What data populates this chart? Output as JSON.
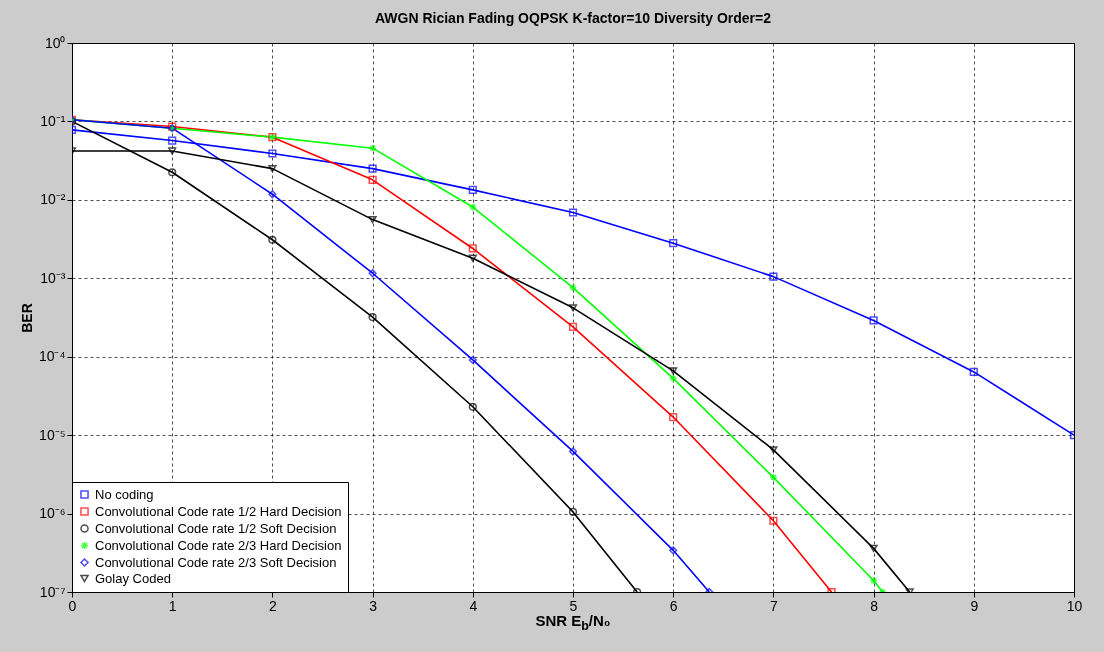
{
  "chart_data": {
    "type": "line",
    "title": "AWGN Rician Fading OQPSK K-factor=10 Diversity Order=2",
    "xlabel": "SNR E$_{b}$/N₀",
    "ylabel": "BER",
    "log": true,
    "grid": true,
    "legend": "bottom left",
    "xlim": [
      0,
      10
    ],
    "xticks": [
      0,
      1,
      2,
      3,
      4,
      5,
      6,
      7,
      8,
      9,
      10
    ],
    "ylim": [
      1e-07,
      1
    ],
    "yticks": [
      {
        "value": 1e-07,
        "label": "10⁻⁷"
      },
      {
        "value": 1e-06,
        "label": "10⁻⁶"
      },
      {
        "value": 1e-05,
        "label": "10⁻⁵"
      },
      {
        "value": 0.0001,
        "label": "10⁻⁴"
      },
      {
        "value": 0.001,
        "label": "10⁻³"
      },
      {
        "value": 0.01,
        "label": "10⁻²"
      },
      {
        "value": 0.1,
        "label": "10⁻¹"
      },
      {
        "value": 1,
        "label": "10⁰"
      }
    ],
    "series": [
      {
        "name": "No coding",
        "color": "#0000ff",
        "marker": "square",
        "x": [
          0,
          1,
          2,
          3,
          4,
          5,
          6,
          7,
          8,
          9,
          10
        ],
        "values": [
          0.078,
          0.057,
          0.039,
          0.025,
          0.0134,
          0.0069,
          0.0028,
          0.00105,
          0.00029,
          6.4e-05,
          1e-05
        ]
      },
      {
        "name": "Convolutional Code rate 1/2 Hard Decision",
        "color": "#ff0000",
        "marker": "square",
        "x": [
          0,
          1,
          2,
          3,
          4,
          5,
          6,
          7,
          7.58
        ],
        "values": [
          0.105,
          0.086,
          0.063,
          0.018,
          0.0024,
          0.00024,
          1.7e-05,
          8.1e-07,
          1e-07
        ]
      },
      {
        "name": "Convolutional Code rate 1/2 Soft Decision",
        "color": "#000000",
        "marker": "circle",
        "x": [
          0,
          1,
          2,
          3,
          4,
          5,
          5.64
        ],
        "values": [
          0.1,
          0.0225,
          0.0031,
          0.00032,
          2.3e-05,
          1.05e-06,
          1e-07
        ]
      },
      {
        "name": "Convolutional Code rate 2/3 Hard Decision",
        "color": "#00ff00",
        "marker": "cross",
        "x": [
          0,
          1,
          2,
          3,
          4,
          5,
          6,
          7,
          8,
          8.09
        ],
        "values": [
          0.105,
          0.082,
          0.063,
          0.0456,
          0.0081,
          0.00076,
          5.3e-05,
          2.9e-06,
          1.4e-07,
          1e-07
        ]
      },
      {
        "name": "Convolutional Code rate 2/3 Soft Decision",
        "color": "#0000ff",
        "marker": "diamond",
        "x": [
          0,
          1,
          2,
          3,
          4,
          5,
          6,
          6.36
        ],
        "values": [
          0.105,
          0.082,
          0.0118,
          0.00116,
          9.1e-05,
          6.2e-06,
          3.4e-07,
          1e-07
        ]
      },
      {
        "name": "Golay Coded",
        "color": "#000000",
        "marker": "triangle",
        "x": [
          0,
          1,
          2,
          3,
          4,
          5,
          6,
          7,
          8,
          8.36
        ],
        "values": [
          0.042,
          0.042,
          0.025,
          0.0056,
          0.0018,
          0.00042,
          6.6e-05,
          6.5e-06,
          3.6e-07,
          1e-07
        ]
      }
    ]
  }
}
